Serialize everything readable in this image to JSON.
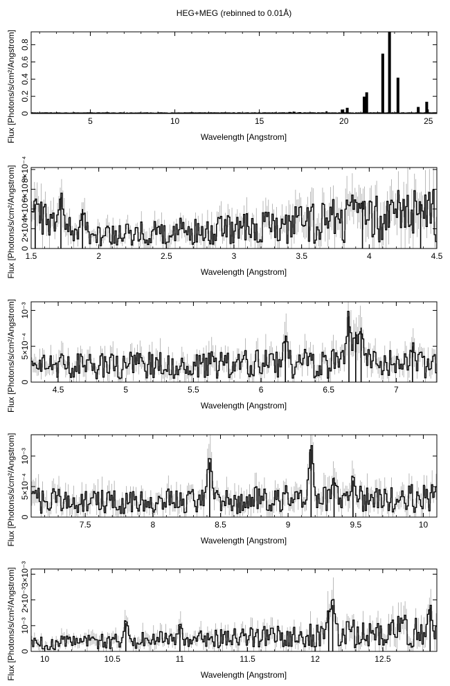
{
  "figure": {
    "title": "HEG+MEG (rebinned to 0.01Å)"
  },
  "chart_data": [
    {
      "type": "line",
      "style": "step histogram with error bars",
      "title": "",
      "xlabel": "Wavelength [Angstrom]",
      "ylabel": "Flux [Photons/s/cm²/Angstrom]",
      "xlim": [
        1.5,
        25.5
      ],
      "ylim": [
        0,
        0.95
      ],
      "x_ticks": [
        {
          "value": 5,
          "label": "5"
        },
        {
          "value": 10,
          "label": "10"
        },
        {
          "value": 15,
          "label": "15"
        },
        {
          "value": 20,
          "label": "20"
        },
        {
          "value": 25,
          "label": "25"
        }
      ],
      "y_ticks": [
        {
          "value": 0,
          "label": "0"
        },
        {
          "value": 0.2,
          "label": "0.2"
        },
        {
          "value": 0.4,
          "label": "0.4"
        },
        {
          "value": 0.6,
          "label": "0.6"
        },
        {
          "value": 0.8,
          "label": "0.8"
        }
      ],
      "continuum": 0.005,
      "features": [
        {
          "x": 16.8,
          "y": 0.012
        },
        {
          "x": 17.05,
          "y": 0.015
        },
        {
          "x": 17.4,
          "y": 0.01
        },
        {
          "x": 18.97,
          "y": 0.02
        },
        {
          "x": 19.9,
          "y": 0.04
        },
        {
          "x": 20.2,
          "y": 0.06
        },
        {
          "x": 21.2,
          "y": 0.19
        },
        {
          "x": 21.35,
          "y": 0.24
        },
        {
          "x": 22.3,
          "y": 0.69
        },
        {
          "x": 22.7,
          "y": 0.94
        },
        {
          "x": 23.2,
          "y": 0.41
        },
        {
          "x": 24.4,
          "y": 0.07
        },
        {
          "x": 24.9,
          "y": 0.13
        }
      ]
    },
    {
      "type": "line",
      "style": "step histogram with error bars",
      "title": "",
      "xlabel": "Wavelength [Angstrom]",
      "ylabel": "Flux [Photons/s/cm²/Angstrom]",
      "xlim": [
        1.5,
        4.5
      ],
      "ylim": [
        0,
        0.00082
      ],
      "x_ticks": [
        {
          "value": 1.5,
          "label": "1.5"
        },
        {
          "value": 2,
          "label": "2"
        },
        {
          "value": 2.5,
          "label": "2.5"
        },
        {
          "value": 3,
          "label": "3"
        },
        {
          "value": 3.5,
          "label": "3.5"
        },
        {
          "value": 4,
          "label": "4"
        },
        {
          "value": 4.5,
          "label": "4.5"
        }
      ],
      "y_ticks": [
        {
          "value": 0,
          "label": "0"
        },
        {
          "value": 0.0002,
          "label": "2×10⁻⁴"
        },
        {
          "value": 0.0004,
          "label": "4×10⁻⁴"
        },
        {
          "value": 0.0006,
          "label": "6×10⁻⁴"
        },
        {
          "value": 0.0008,
          "label": "8×10⁻⁴"
        }
      ],
      "continuum": [
        [
          1.5,
          0.0003
        ],
        [
          2.0,
          0.00012
        ],
        [
          2.3,
          0.00015
        ],
        [
          3.0,
          0.0002
        ],
        [
          3.5,
          0.00025
        ],
        [
          4.0,
          0.00032
        ],
        [
          4.5,
          0.00034
        ]
      ],
      "features": [
        {
          "x": 1.53,
          "y": 0.00045
        },
        {
          "x": 1.72,
          "y": 0.00052
        },
        {
          "x": 1.88,
          "y": 0.0004
        },
        {
          "x": 3.95,
          "y": 0.00048
        },
        {
          "x": 4.38,
          "y": 0.00045
        }
      ]
    },
    {
      "type": "line",
      "style": "step histogram with error bars",
      "title": "",
      "xlabel": "Wavelength [Angstrom]",
      "ylabel": "Flux [Photons/s/cm²/Angstrom]",
      "xlim": [
        4.3,
        7.3
      ],
      "ylim": [
        0,
        0.00112
      ],
      "x_ticks": [
        {
          "value": 4.5,
          "label": "4.5"
        },
        {
          "value": 5,
          "label": "5"
        },
        {
          "value": 5.5,
          "label": "5.5"
        },
        {
          "value": 6,
          "label": "6"
        },
        {
          "value": 6.5,
          "label": "6.5"
        },
        {
          "value": 7,
          "label": "7"
        }
      ],
      "y_ticks": [
        {
          "value": 0,
          "label": "0"
        },
        {
          "value": 0.0005,
          "label": "5×10⁻⁴"
        },
        {
          "value": 0.001,
          "label": "10⁻³"
        }
      ],
      "continuum": [
        [
          4.3,
          0.00022
        ],
        [
          5.5,
          0.00024
        ],
        [
          6.5,
          0.00026
        ],
        [
          7.3,
          0.00025
        ]
      ],
      "features": [
        {
          "x": 6.18,
          "y": 0.00065
        },
        {
          "x": 6.65,
          "y": 0.00092
        },
        {
          "x": 6.7,
          "y": 0.0007
        },
        {
          "x": 6.74,
          "y": 0.00076
        },
        {
          "x": 7.12,
          "y": 0.0005
        }
      ]
    },
    {
      "type": "line",
      "style": "step histogram with error bars",
      "title": "",
      "xlabel": "Wavelength [Angstrom]",
      "ylabel": "Flux [Photons/s/cm²/Angstrom]",
      "xlim": [
        7.1,
        10.1
      ],
      "ylim": [
        0,
        0.00135
      ],
      "x_ticks": [
        {
          "value": 7.5,
          "label": "7.5"
        },
        {
          "value": 8,
          "label": "8"
        },
        {
          "value": 8.5,
          "label": "8.5"
        },
        {
          "value": 9,
          "label": "9"
        },
        {
          "value": 9.5,
          "label": "9.5"
        },
        {
          "value": 10,
          "label": "10"
        }
      ],
      "y_ticks": [
        {
          "value": 0,
          "label": "0"
        },
        {
          "value": 0.0005,
          "label": "5×10⁻⁴"
        },
        {
          "value": 0.001,
          "label": "10⁻³"
        }
      ],
      "continuum": [
        [
          7.1,
          0.00028
        ],
        [
          8.0,
          0.00025
        ],
        [
          9.0,
          0.0003
        ],
        [
          10.1,
          0.0003
        ]
      ],
      "features": [
        {
          "x": 8.42,
          "y": 0.0009
        },
        {
          "x": 9.17,
          "y": 0.0011
        },
        {
          "x": 9.34,
          "y": 0.00065
        },
        {
          "x": 9.48,
          "y": 0.0006
        }
      ]
    },
    {
      "type": "line",
      "style": "step histogram with error bars",
      "title": "",
      "xlabel": "Wavelength [Angstrom]",
      "ylabel": "Flux [Photons/s/cm²/Angstrom]",
      "xlim": [
        9.9,
        12.9
      ],
      "ylim": [
        0,
        0.0032
      ],
      "x_ticks": [
        {
          "value": 10,
          "label": "10"
        },
        {
          "value": 10.5,
          "label": "10.5"
        },
        {
          "value": 11,
          "label": "11"
        },
        {
          "value": 11.5,
          "label": "11.5"
        },
        {
          "value": 12,
          "label": "12"
        },
        {
          "value": 12.5,
          "label": "12.5"
        }
      ],
      "y_ticks": [
        {
          "value": 0,
          "label": "0"
        },
        {
          "value": 0.001,
          "label": "10⁻³"
        },
        {
          "value": 0.002,
          "label": "2×10⁻³"
        },
        {
          "value": 0.003,
          "label": "3×10⁻³"
        }
      ],
      "continuum": [
        [
          9.9,
          0.0003
        ],
        [
          11.0,
          0.00045
        ],
        [
          12.0,
          0.0006
        ],
        [
          12.9,
          0.00085
        ]
      ],
      "features": [
        {
          "x": 10.6,
          "y": 0.0011
        },
        {
          "x": 11.0,
          "y": 0.001
        },
        {
          "x": 12.1,
          "y": 0.0016
        },
        {
          "x": 12.13,
          "y": 0.0018
        },
        {
          "x": 12.85,
          "y": 0.0017
        }
      ]
    }
  ]
}
